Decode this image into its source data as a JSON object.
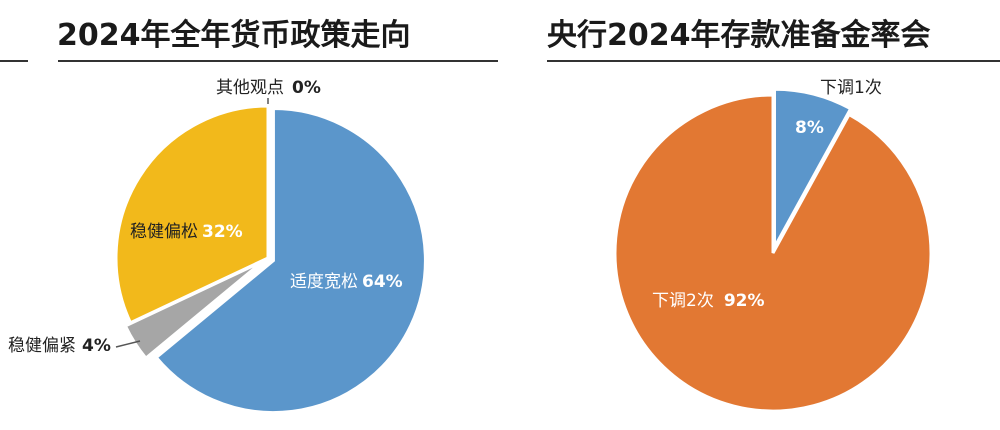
{
  "chart_data": [
    {
      "type": "pie",
      "title": "2024年全年货币政策走向",
      "slices": [
        {
          "name": "适度宽松",
          "value": 64,
          "label": "64%",
          "color": "#5b96cb"
        },
        {
          "name": "稳健偏紧",
          "value": 4,
          "label": "4%",
          "color": "#a6a6a6"
        },
        {
          "name": "稳健偏松",
          "value": 32,
          "label": "32%",
          "color": "#f2b91b"
        },
        {
          "name": "其他观点",
          "value": 0,
          "label": "0%",
          "color": "#cccccc"
        }
      ],
      "start": "12 o'clock",
      "direction": "clockwise"
    },
    {
      "type": "pie",
      "title": "央行2024年存款准备金率会",
      "slices": [
        {
          "name": "下调1次",
          "value": 8,
          "label": "8%",
          "color": "#5b96cb"
        },
        {
          "name": "下调2次",
          "value": 92,
          "label": "92%",
          "color": "#e27833"
        }
      ],
      "start": "12 o'clock",
      "direction": "clockwise"
    }
  ]
}
